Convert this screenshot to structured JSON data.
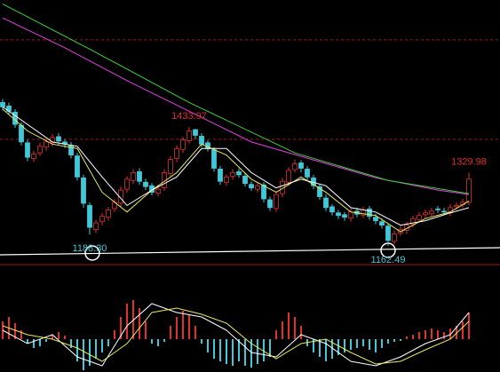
{
  "chart_data": {
    "type": "candlestick",
    "ylim": [
      1120,
      1724
    ],
    "ref_levels": [
      1633,
      1406
    ],
    "up_color": "#e03030",
    "down_color": "#40c8d8",
    "open": [
      1490,
      1482,
      1468,
      1438,
      1398,
      1362,
      1375,
      1388,
      1398,
      1412,
      1400,
      1392,
      1368,
      1318,
      1255,
      1200,
      1218,
      1228,
      1248,
      1260,
      1292,
      1312,
      1332,
      1308,
      1300,
      1283,
      1295,
      1328,
      1362,
      1383,
      1403,
      1428,
      1413,
      1398,
      1382,
      1338,
      1308,
      1322,
      1332,
      1322,
      1303,
      1292,
      1302,
      1268,
      1248,
      1282,
      1308,
      1337,
      1352,
      1338,
      1318,
      1298,
      1272,
      1252,
      1238,
      1234,
      1226,
      1242,
      1233,
      1247,
      1228,
      1218,
      1208,
      1173,
      1192,
      1198,
      1212,
      1223,
      1234,
      1236,
      1247,
      1242,
      1238,
      1252,
      1257,
      1262
    ],
    "high": [
      1498,
      1490,
      1475,
      1445,
      1405,
      1380,
      1398,
      1408,
      1418,
      1420,
      1406,
      1400,
      1375,
      1325,
      1262,
      1222,
      1238,
      1252,
      1270,
      1298,
      1322,
      1338,
      1340,
      1316,
      1306,
      1302,
      1338,
      1368,
      1392,
      1412,
      1433.97,
      1430,
      1420,
      1404,
      1388,
      1345,
      1326,
      1338,
      1340,
      1328,
      1310,
      1308,
      1308,
      1275,
      1288,
      1318,
      1342,
      1360,
      1358,
      1345,
      1325,
      1305,
      1280,
      1258,
      1245,
      1240,
      1248,
      1250,
      1252,
      1254,
      1236,
      1225,
      1214,
      1198,
      1208,
      1218,
      1232,
      1240,
      1246,
      1250,
      1254,
      1250,
      1258,
      1262,
      1270,
      1329.98
    ],
    "low": [
      1472,
      1462,
      1432,
      1392,
      1356,
      1354,
      1368,
      1380,
      1390,
      1394,
      1386,
      1362,
      1312,
      1250,
      1188.3,
      1192,
      1210,
      1220,
      1240,
      1252,
      1284,
      1304,
      1302,
      1290,
      1278,
      1276,
      1288,
      1320,
      1354,
      1375,
      1396,
      1406,
      1388,
      1378,
      1332,
      1302,
      1300,
      1314,
      1318,
      1298,
      1288,
      1285,
      1262,
      1242,
      1240,
      1274,
      1300,
      1330,
      1330,
      1312,
      1292,
      1268,
      1242,
      1232,
      1224,
      1220,
      1218,
      1228,
      1226,
      1222,
      1212,
      1202,
      1162.49,
      1166,
      1185,
      1190,
      1205,
      1216,
      1226,
      1229,
      1238,
      1233,
      1231,
      1245,
      1250,
      1255
    ],
    "close": [
      1480,
      1470,
      1440,
      1400,
      1365,
      1372,
      1390,
      1400,
      1410,
      1402,
      1395,
      1370,
      1320,
      1260,
      1205,
      1215,
      1230,
      1245,
      1262,
      1290,
      1315,
      1330,
      1310,
      1298,
      1285,
      1292,
      1330,
      1360,
      1385,
      1405,
      1425,
      1415,
      1395,
      1385,
      1340,
      1310,
      1320,
      1330,
      1325,
      1305,
      1295,
      1300,
      1270,
      1250,
      1280,
      1310,
      1335,
      1350,
      1340,
      1320,
      1300,
      1275,
      1250,
      1240,
      1232,
      1228,
      1240,
      1235,
      1245,
      1230,
      1220,
      1210,
      1175,
      1190,
      1200,
      1210,
      1225,
      1232,
      1238,
      1242,
      1245,
      1240,
      1250,
      1255,
      1262,
      1315
    ],
    "lines": [
      {
        "color": "#e8e860",
        "x": [
          0,
          4,
          8,
          12,
          16,
          20,
          24,
          28,
          32,
          36,
          40,
          44,
          48,
          52,
          56,
          60,
          64,
          68,
          72,
          75
        ],
        "values": [
          1475,
          1425,
          1395,
          1385,
          1285,
          1240,
          1290,
          1330,
          1395,
          1370,
          1315,
          1285,
          1320,
          1285,
          1240,
          1232,
          1195,
          1225,
          1240,
          1265
        ]
      },
      {
        "color": "#ffffff",
        "x": [
          0,
          4,
          8,
          12,
          16,
          20,
          24,
          28,
          32,
          36,
          40,
          44,
          48,
          52,
          56,
          60,
          64,
          68,
          72,
          75
        ],
        "values": [
          1480,
          1440,
          1400,
          1390,
          1320,
          1255,
          1290,
          1320,
          1385,
          1385,
          1330,
          1295,
          1315,
          1300,
          1250,
          1240,
          1210,
          1220,
          1238,
          1250
        ]
      },
      {
        "color": "#e040e0",
        "x": [
          0,
          10,
          20,
          30,
          40,
          50,
          60,
          70,
          75
        ],
        "values": [
          1683,
          1615,
          1540,
          1470,
          1400,
          1359,
          1318,
          1290,
          1280
        ]
      },
      {
        "color": "#40d040",
        "x": [
          0,
          14,
          30,
          47,
          62,
          75
        ],
        "values": [
          1715,
          1612,
          1490,
          1375,
          1312,
          1282
        ]
      }
    ],
    "annotations": [
      {
        "label": "1433.97",
        "value": 1433.97,
        "x": 30,
        "color": "#e03030"
      },
      {
        "label": "1329.98",
        "value": 1329.98,
        "x": 75,
        "color": "#e03030"
      },
      {
        "label": "1188.30",
        "value": 1188.3,
        "x": 14,
        "color": "#40c8d8"
      },
      {
        "label": "1162.49",
        "value": 1162.49,
        "x": 62,
        "color": "#40c8d8"
      }
    ],
    "macd": {
      "ylim": [
        -37,
        82
      ],
      "values": [
        20,
        25,
        18,
        10,
        -5,
        -10,
        -8,
        -3,
        5,
        8,
        4,
        -10,
        -25,
        -35,
        -30,
        -22,
        -15,
        -8,
        10,
        25,
        40,
        44,
        35,
        20,
        -5,
        -8,
        -3,
        15,
        25,
        32,
        28,
        15,
        -5,
        -15,
        -22,
        -25,
        -28,
        -30,
        -25,
        -30,
        -32,
        -28,
        -25,
        -20,
        10,
        20,
        30,
        25,
        15,
        -8,
        -15,
        -20,
        -25,
        -22,
        -18,
        -15,
        -12,
        -10,
        -8,
        -12,
        -15,
        -10,
        -5,
        -3,
        -2,
        3,
        5,
        8,
        10,
        12,
        10,
        8,
        12,
        15,
        20,
        30
      ],
      "lines": [
        {
          "color": "#ffffff",
          "x": [
            0,
            4,
            8,
            12,
            16,
            20,
            24,
            28,
            32,
            36,
            40,
            44,
            48,
            52,
            56,
            60,
            64,
            68,
            72,
            75
          ],
          "values": [
            10,
            -5,
            5,
            -20,
            -30,
            15,
            40,
            30,
            25,
            10,
            -15,
            -20,
            5,
            -5,
            -25,
            -30,
            -20,
            -5,
            5,
            30
          ]
        },
        {
          "color": "#e8e860",
          "x": [
            0,
            4,
            8,
            12,
            16,
            20,
            24,
            28,
            32,
            36,
            40,
            44,
            48,
            52,
            56,
            60,
            64,
            68,
            72,
            75
          ],
          "values": [
            15,
            5,
            0,
            -10,
            -25,
            -5,
            30,
            35,
            28,
            18,
            -5,
            -22,
            -5,
            0,
            -15,
            -28,
            -25,
            -12,
            0,
            20
          ]
        }
      ]
    }
  }
}
